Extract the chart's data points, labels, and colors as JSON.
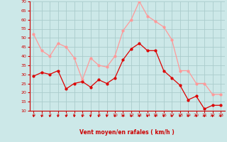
{
  "x": [
    0,
    1,
    2,
    3,
    4,
    5,
    6,
    7,
    8,
    9,
    10,
    11,
    12,
    13,
    14,
    15,
    16,
    17,
    18,
    19,
    20,
    21,
    22,
    23
  ],
  "wind_avg": [
    29,
    31,
    30,
    32,
    22,
    25,
    26,
    23,
    27,
    25,
    28,
    38,
    44,
    47,
    43,
    43,
    32,
    28,
    24,
    16,
    18,
    11,
    13,
    13
  ],
  "wind_gust": [
    52,
    43,
    40,
    47,
    45,
    39,
    27,
    39,
    35,
    34,
    40,
    54,
    60,
    70,
    62,
    59,
    56,
    49,
    32,
    32,
    25,
    25,
    19,
    19
  ],
  "bg_color": "#cce8e8",
  "grid_color": "#aacccc",
  "avg_color": "#dd0000",
  "gust_color": "#ff9999",
  "xlabel": "Vent moyen/en rafales ( km/h )",
  "xlabel_color": "#cc0000",
  "tick_color": "#cc0000",
  "spine_color": "#cc0000",
  "ylim": [
    10,
    70
  ],
  "yticks": [
    10,
    15,
    20,
    25,
    30,
    35,
    40,
    45,
    50,
    55,
    60,
    65,
    70
  ],
  "xlim": [
    -0.5,
    23.5
  ],
  "figsize": [
    3.2,
    2.0
  ],
  "dpi": 100
}
